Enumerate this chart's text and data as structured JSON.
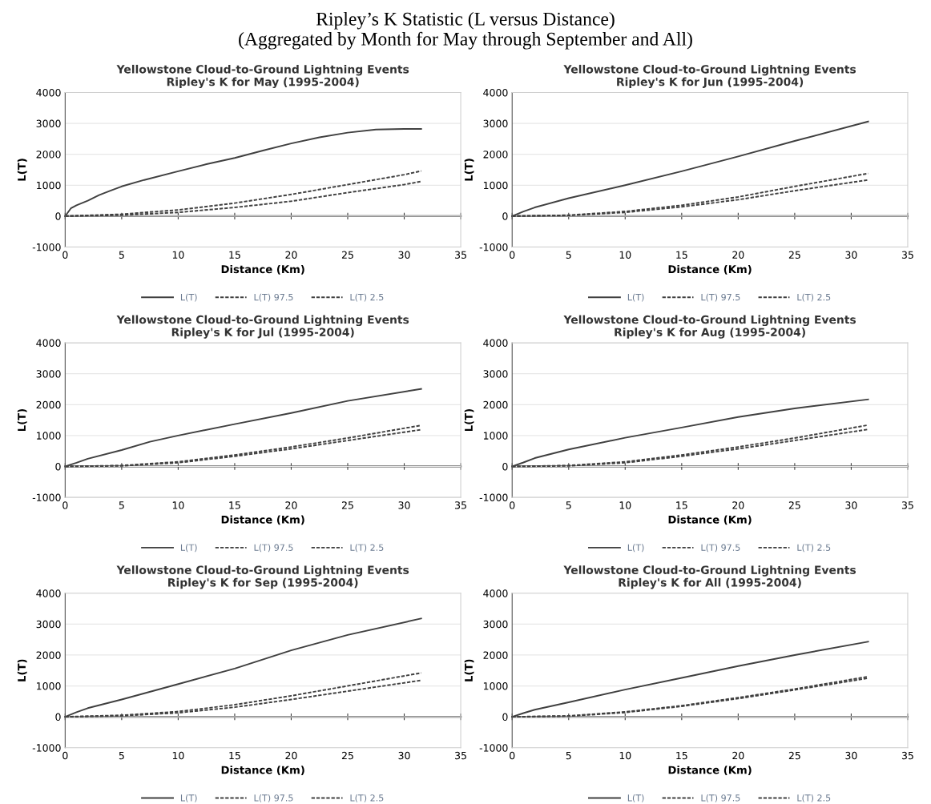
{
  "chart_data": [
    {
      "type": "line",
      "title": "Yellowstone Cloud-to-Ground Lightning Events\nRipley's K for May (1995-2004)",
      "annotations": [
        "Ripley’s K Statistic (L versus Distance)\n(Aggregated by Month for May through September and All)"
      ],
      "xlabel": "Distance (Km)",
      "ylabel": "L(T)",
      "xlim": [
        0,
        35
      ],
      "xticks": [
        0,
        5,
        10,
        15,
        20,
        25,
        30,
        35
      ],
      "ylim": [
        -1000,
        4000
      ],
      "yticks": [
        -1000,
        0,
        1000,
        2000,
        3000,
        4000
      ],
      "grid": "y",
      "legend": "bottom",
      "series": [
        {
          "name": "L(T)",
          "color": "#404040",
          "line_style": "solid",
          "x": [
            0,
            0.5,
            1,
            2,
            3,
            4,
            5,
            7,
            10,
            12.5,
            15,
            17.5,
            20,
            22.5,
            25,
            27.5,
            30,
            31.5
          ],
          "values": [
            0,
            250,
            350,
            500,
            680,
            820,
            960,
            1170,
            1450,
            1680,
            1880,
            2120,
            2350,
            2550,
            2700,
            2800,
            2820,
            2820
          ]
        },
        {
          "name": "L(T) 97.5",
          "color": "#404040",
          "line_style": "dashed",
          "x": [
            0,
            5,
            10,
            15,
            20,
            25,
            30,
            31.5
          ],
          "values": [
            0,
            60,
            200,
            420,
            700,
            1020,
            1340,
            1460
          ]
        },
        {
          "name": "L(T) 2.5",
          "color": "#404040",
          "line_style": "dashed",
          "x": [
            0,
            5,
            10,
            15,
            20,
            25,
            30,
            31.5
          ],
          "values": [
            0,
            30,
            120,
            280,
            480,
            760,
            1020,
            1120
          ]
        }
      ]
    },
    {
      "type": "line",
      "title": "Yellowstone Cloud-to-Ground Lightning Events\nRipley's K for Jun (1995-2004)",
      "xlabel": "Distance (Km)",
      "ylabel": "L(T)",
      "xlim": [
        0,
        35
      ],
      "xticks": [
        0,
        5,
        10,
        15,
        20,
        25,
        30,
        35
      ],
      "ylim": [
        -1000,
        4000
      ],
      "yticks": [
        -1000,
        0,
        1000,
        2000,
        3000,
        4000
      ],
      "grid": "y",
      "legend": "bottom",
      "series": [
        {
          "name": "L(T)",
          "color": "#404040",
          "line_style": "solid",
          "x": [
            0,
            1,
            2,
            5,
            10,
            15,
            20,
            25,
            31.5
          ],
          "values": [
            0,
            150,
            280,
            580,
            1000,
            1450,
            1930,
            2430,
            3060
          ]
        },
        {
          "name": "L(T) 97.5",
          "color": "#404040",
          "line_style": "dashed",
          "x": [
            0,
            5,
            10,
            15,
            20,
            25,
            31.5
          ],
          "values": [
            0,
            30,
            150,
            350,
            620,
            960,
            1380
          ]
        },
        {
          "name": "L(T) 2.5",
          "color": "#404040",
          "line_style": "dashed",
          "x": [
            0,
            5,
            10,
            15,
            20,
            25,
            31.5
          ],
          "values": [
            0,
            20,
            120,
            300,
            530,
            820,
            1170
          ]
        }
      ]
    },
    {
      "type": "line",
      "title": "Yellowstone Cloud-to-Ground Lightning Events\nRipley's K for Jul (1995-2004)",
      "xlabel": "Distance (Km)",
      "ylabel": "L(T)",
      "xlim": [
        0,
        35
      ],
      "xticks": [
        0,
        5,
        10,
        15,
        20,
        25,
        30,
        35
      ],
      "ylim": [
        -1000,
        4000
      ],
      "yticks": [
        -1000,
        0,
        1000,
        2000,
        3000,
        4000
      ],
      "grid": "y",
      "legend": "bottom",
      "series": [
        {
          "name": "L(T)",
          "color": "#404040",
          "line_style": "solid",
          "x": [
            0,
            1,
            2,
            5,
            7.5,
            10,
            15,
            20,
            25,
            31.5
          ],
          "values": [
            0,
            120,
            250,
            530,
            800,
            1000,
            1370,
            1730,
            2120,
            2510
          ]
        },
        {
          "name": "L(T) 97.5",
          "color": "#404040",
          "line_style": "dashed",
          "x": [
            0,
            5,
            10,
            15,
            20,
            25,
            31.5
          ],
          "values": [
            0,
            30,
            150,
            370,
            630,
            920,
            1330
          ]
        },
        {
          "name": "L(T) 2.5",
          "color": "#404040",
          "line_style": "dashed",
          "x": [
            0,
            5,
            10,
            15,
            20,
            25,
            31.5
          ],
          "values": [
            0,
            20,
            120,
            330,
            570,
            840,
            1190
          ]
        }
      ]
    },
    {
      "type": "line",
      "title": "Yellowstone Cloud-to-Ground Lightning Events\nRipley's K for Aug (1995-2004)",
      "xlabel": "Distance (Km)",
      "ylabel": "L(T)",
      "xlim": [
        0,
        35
      ],
      "xticks": [
        0,
        5,
        10,
        15,
        20,
        25,
        30,
        35
      ],
      "ylim": [
        -1000,
        4000
      ],
      "yticks": [
        -1000,
        0,
        1000,
        2000,
        3000,
        4000
      ],
      "grid": "y",
      "legend": "bottom",
      "series": [
        {
          "name": "L(T)",
          "color": "#404040",
          "line_style": "solid",
          "x": [
            0,
            1,
            2,
            5,
            10,
            15,
            20,
            25,
            31.5
          ],
          "values": [
            0,
            130,
            270,
            550,
            930,
            1260,
            1600,
            1880,
            2170
          ]
        },
        {
          "name": "L(T) 97.5",
          "color": "#404040",
          "line_style": "dashed",
          "x": [
            0,
            5,
            10,
            15,
            20,
            25,
            31.5
          ],
          "values": [
            0,
            30,
            150,
            370,
            630,
            920,
            1340
          ]
        },
        {
          "name": "L(T) 2.5",
          "color": "#404040",
          "line_style": "dashed",
          "x": [
            0,
            5,
            10,
            15,
            20,
            25,
            31.5
          ],
          "values": [
            0,
            20,
            120,
            330,
            570,
            840,
            1200
          ]
        }
      ]
    },
    {
      "type": "line",
      "title": "Yellowstone Cloud-to-Ground Lightning Events\nRipley's K for Sep (1995-2004)",
      "xlabel": "Distance (Km)",
      "ylabel": "L(T)",
      "xlim": [
        0,
        35
      ],
      "xticks": [
        0,
        5,
        10,
        15,
        20,
        25,
        30,
        35
      ],
      "ylim": [
        -1000,
        4000
      ],
      "yticks": [
        -1000,
        0,
        1000,
        2000,
        3000,
        4000
      ],
      "grid": "y",
      "legend": "bottom",
      "series": [
        {
          "name": "L(T)",
          "color": "#404040",
          "line_style": "solid",
          "x": [
            0,
            1,
            2,
            5,
            10,
            15,
            20,
            25,
            31.5
          ],
          "values": [
            0,
            150,
            280,
            560,
            1060,
            1560,
            2150,
            2650,
            3180
          ]
        },
        {
          "name": "L(T) 97.5",
          "color": "#404040",
          "line_style": "dashed",
          "x": [
            0,
            5,
            10,
            15,
            20,
            25,
            31.5
          ],
          "values": [
            0,
            50,
            170,
            390,
            680,
            1000,
            1420
          ]
        },
        {
          "name": "L(T) 2.5",
          "color": "#404040",
          "line_style": "dashed",
          "x": [
            0,
            5,
            10,
            15,
            20,
            25,
            31.5
          ],
          "values": [
            0,
            30,
            130,
            310,
            560,
            830,
            1180
          ]
        }
      ]
    },
    {
      "type": "line",
      "title": "Yellowstone Cloud-to-Ground Lightning Events\nRipley's K for All (1995-2004)",
      "xlabel": "Distance (Km)",
      "ylabel": "L(T)",
      "xlim": [
        0,
        35
      ],
      "xticks": [
        0,
        5,
        10,
        15,
        20,
        25,
        30,
        35
      ],
      "ylim": [
        -1000,
        4000
      ],
      "yticks": [
        -1000,
        0,
        1000,
        2000,
        3000,
        4000
      ],
      "grid": "y",
      "legend": "bottom",
      "series": [
        {
          "name": "L(T)",
          "color": "#404040",
          "line_style": "solid",
          "x": [
            0,
            1,
            2,
            5,
            10,
            15,
            20,
            25,
            31.5
          ],
          "values": [
            0,
            120,
            230,
            470,
            880,
            1260,
            1640,
            2000,
            2430
          ]
        },
        {
          "name": "L(T) 97.5",
          "color": "#404040",
          "line_style": "dashed",
          "x": [
            0,
            5,
            10,
            15,
            20,
            25,
            31.5
          ],
          "values": [
            0,
            30,
            160,
            360,
            620,
            900,
            1300
          ]
        },
        {
          "name": "L(T) 2.5",
          "color": "#404040",
          "line_style": "dashed",
          "x": [
            0,
            5,
            10,
            15,
            20,
            25,
            31.5
          ],
          "values": [
            0,
            20,
            140,
            340,
            590,
            870,
            1250
          ]
        }
      ]
    }
  ]
}
